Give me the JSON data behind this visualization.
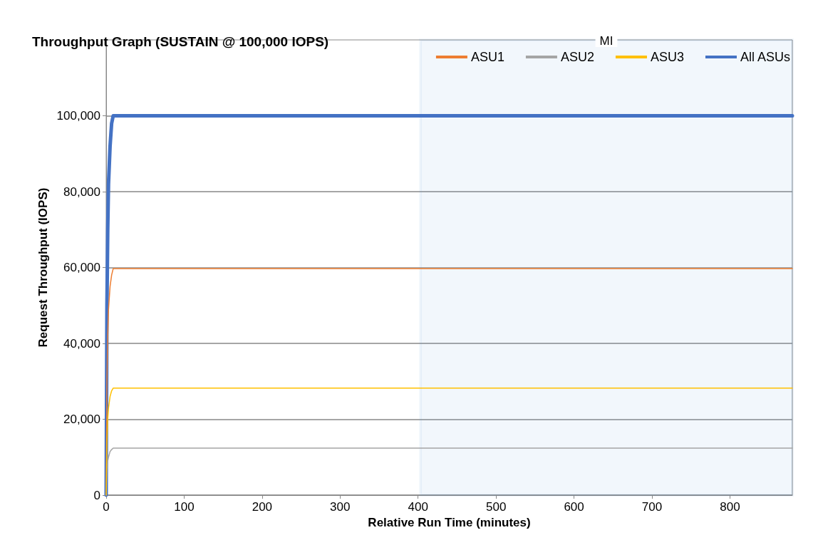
{
  "chart_data": {
    "type": "line",
    "title": "Throughput Graph (SUSTAIN @ 100,000 IOPS)",
    "xlabel": "Relative Run Time (minutes)",
    "ylabel": "Request Throughput (IOPS)",
    "x": [
      0,
      1,
      2,
      3,
      5,
      7,
      9,
      10,
      880
    ],
    "series": [
      {
        "name": "ASU1",
        "color": "#ed7d31",
        "values": [
          0,
          30000,
          42000,
          49000,
          55000,
          58000,
          59700,
          59700,
          59700
        ]
      },
      {
        "name": "ASU2",
        "color": "#a5a5a5",
        "values": [
          0,
          7000,
          9000,
          10000,
          11500,
          12000,
          12400,
          12400,
          12400
        ]
      },
      {
        "name": "ASU3",
        "color": "#ffc000",
        "values": [
          0,
          14000,
          20000,
          23000,
          26000,
          27500,
          28200,
          28200,
          28200
        ]
      },
      {
        "name": "All ASUs",
        "color": "#4472c4",
        "values": [
          0,
          50000,
          70000,
          82000,
          92000,
          98000,
          100000,
          100000,
          100000
        ]
      }
    ],
    "xlim": [
      0,
      880
    ],
    "xticks": [
      0,
      100,
      200,
      300,
      400,
      500,
      600,
      700,
      800
    ],
    "ylim": [
      0,
      120000
    ],
    "yticks": [
      {
        "value": 0,
        "label": "0"
      },
      {
        "value": 20000,
        "label": "20,000"
      },
      {
        "value": 40000,
        "label": "40,000"
      },
      {
        "value": 60000,
        "label": "60,000"
      },
      {
        "value": 80000,
        "label": "80,000"
      },
      {
        "value": 100000,
        "label": "100,000"
      }
    ],
    "bands": [
      {
        "axis": "x",
        "from": 403,
        "to": 880,
        "label": "MI",
        "color": "#5b9bd5"
      }
    ],
    "grid": "y",
    "legend": "top right",
    "marker": "none",
    "line_style": "solid"
  }
}
